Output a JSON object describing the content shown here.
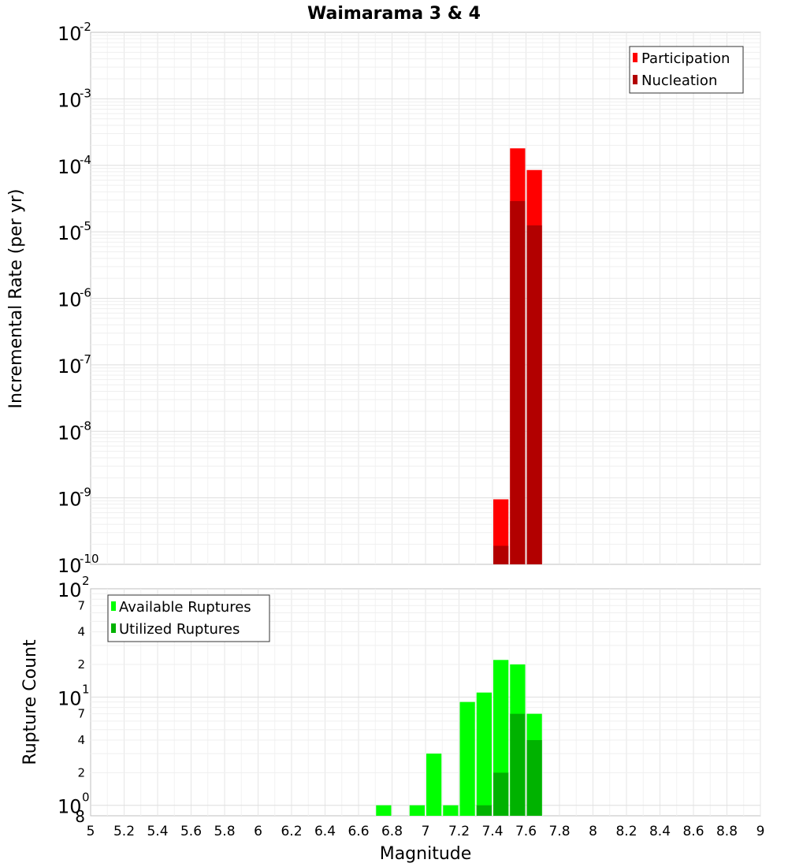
{
  "chart_data": [
    {
      "type": "bar",
      "scale": "log",
      "title": "Waimarama 3 & 4",
      "xlabel": "",
      "ylabel": "Incremental Rate (per yr)",
      "xlim": [
        5,
        9
      ],
      "ylim": [
        1e-10,
        0.01
      ],
      "y_ticks": [
        {
          "base": "10",
          "exp": "-2"
        },
        {
          "base": "10",
          "exp": "-3"
        },
        {
          "base": "10",
          "exp": "-4"
        },
        {
          "base": "10",
          "exp": "-5"
        },
        {
          "base": "10",
          "exp": "-6"
        },
        {
          "base": "10",
          "exp": "-7"
        },
        {
          "base": "10",
          "exp": "-8"
        },
        {
          "base": "10",
          "exp": "-9"
        },
        {
          "base": "10",
          "exp": "-10"
        }
      ],
      "bin_width": 0.1,
      "legend": {
        "position": "top-right"
      },
      "series": [
        {
          "name": "Participation",
          "color": "#ff0000",
          "x": [
            7.45,
            7.55,
            7.65
          ],
          "values": [
            9.5e-10,
            0.00018,
            8.5e-05
          ]
        },
        {
          "name": "Nucleation",
          "color": "#b20000",
          "x": [
            7.45,
            7.55,
            7.65
          ],
          "values": [
            1.9e-10,
            2.9e-05,
            1.25e-05
          ]
        }
      ]
    },
    {
      "type": "bar",
      "scale": "log",
      "title": "",
      "xlabel": "Magnitude",
      "ylabel": "Rupture Count",
      "xlim": [
        5,
        9
      ],
      "ylim": [
        0.8,
        100
      ],
      "x_ticks": [
        "5",
        "5.2",
        "5.4",
        "5.6",
        "5.8",
        "6",
        "6.2",
        "6.4",
        "6.6",
        "6.8",
        "7",
        "7.2",
        "7.4",
        "7.6",
        "7.8",
        "8",
        "8.2",
        "8.4",
        "8.6",
        "8.8",
        "9"
      ],
      "y_major_ticks": [
        {
          "base": "10",
          "exp": "2"
        },
        {
          "base": "10",
          "exp": "1"
        },
        {
          "base": "10",
          "exp": "0"
        }
      ],
      "y_minor_ticks": [
        "7",
        "4",
        "2",
        "7",
        "4",
        "2",
        "8"
      ],
      "bin_width": 0.1,
      "legend": {
        "position": "top-left"
      },
      "series": [
        {
          "name": "Available Ruptures",
          "color": "#00ff00",
          "x": [
            6.75,
            6.95,
            7.05,
            7.15,
            7.25,
            7.35,
            7.45,
            7.55,
            7.65
          ],
          "values": [
            1,
            1,
            3,
            1,
            9,
            11,
            22,
            20,
            7
          ]
        },
        {
          "name": "Utilized Ruptures",
          "color": "#00b200",
          "x": [
            7.35,
            7.45,
            7.55,
            7.65
          ],
          "values": [
            1,
            2,
            7,
            4
          ]
        }
      ]
    }
  ]
}
